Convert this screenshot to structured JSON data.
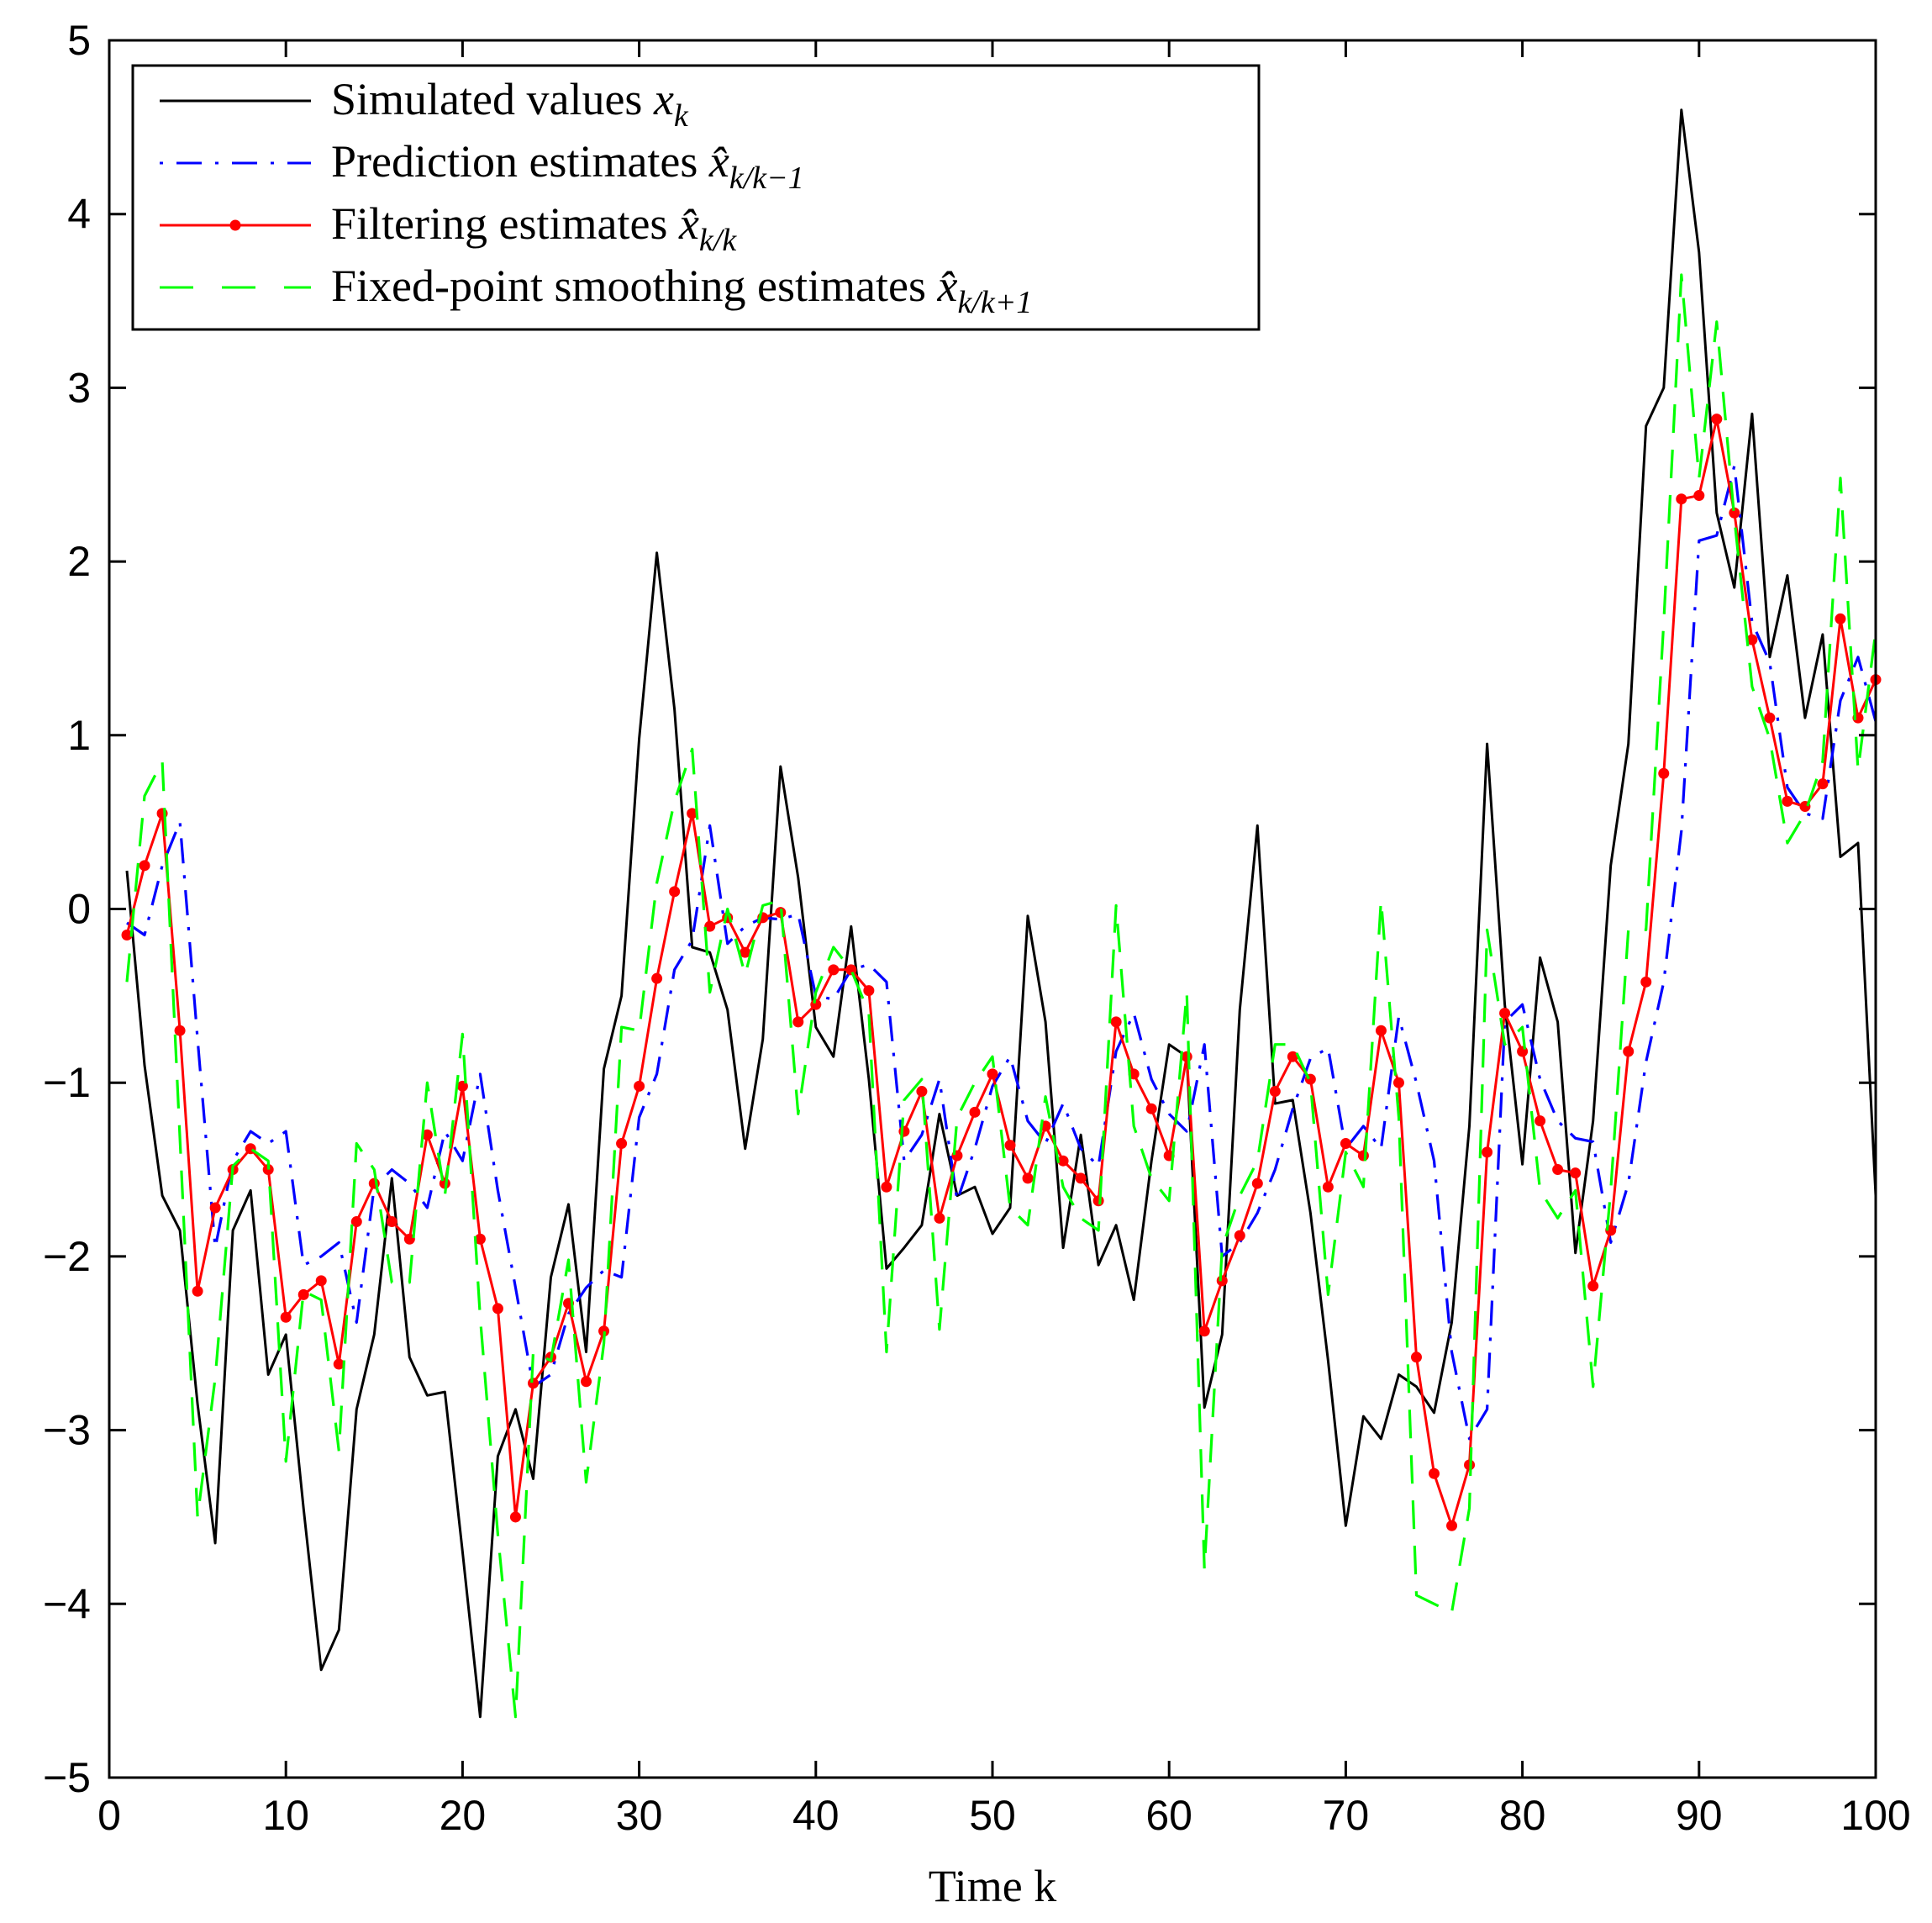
{
  "chart_data": {
    "type": "line",
    "title": "",
    "xlabel": "Time k",
    "ylabel": "",
    "xlim": [
      0,
      100
    ],
    "ylim": [
      -5,
      5
    ],
    "xticks": [
      0,
      10,
      20,
      30,
      40,
      50,
      60,
      70,
      80,
      90,
      100
    ],
    "yticks": [
      -5,
      -4,
      -3,
      -2,
      -1,
      0,
      1,
      2,
      3,
      4,
      5
    ],
    "xtick_labels": [
      "0",
      "10",
      "20",
      "30",
      "40",
      "50",
      "60",
      "70",
      "80",
      "90",
      "100"
    ],
    "ytick_labels": [
      "−5",
      "−4",
      "−3",
      "−2",
      "−1",
      "0",
      "1",
      "2",
      "3",
      "4",
      "5"
    ],
    "grid": false,
    "legend_position": "top-left",
    "x": [
      1,
      2,
      3,
      4,
      5,
      6,
      7,
      8,
      9,
      10,
      11,
      12,
      13,
      14,
      15,
      16,
      17,
      18,
      19,
      20,
      21,
      22,
      23,
      24,
      25,
      26,
      27,
      28,
      29,
      30,
      31,
      32,
      33,
      34,
      35,
      36,
      37,
      38,
      39,
      40,
      41,
      42,
      43,
      44,
      45,
      46,
      47,
      48,
      49,
      50,
      51,
      52,
      53,
      54,
      55,
      56,
      57,
      58,
      59,
      60,
      61,
      62,
      63,
      64,
      65,
      66,
      67,
      68,
      69,
      70,
      71,
      72,
      73,
      74,
      75,
      76,
      77,
      78,
      79,
      80,
      81,
      82,
      83,
      84,
      85,
      86,
      87,
      88,
      89,
      90,
      91,
      92,
      93,
      94,
      95,
      96,
      97,
      98,
      99,
      100
    ],
    "series": [
      {
        "name": "Simulated values x_k",
        "legend_label": "Simulated values",
        "legend_math": "x",
        "legend_sub": "k",
        "color": "#000000",
        "style": "solid",
        "marker": "none",
        "values": [
          0.22,
          -0.9,
          -1.65,
          -1.85,
          -2.85,
          -3.65,
          -1.85,
          -1.62,
          -2.68,
          -2.45,
          -3.45,
          -4.38,
          -4.15,
          -2.88,
          -2.45,
          -1.55,
          -2.58,
          -2.8,
          -2.78,
          -3.7,
          -4.65,
          -3.15,
          -2.88,
          -3.28,
          -2.12,
          -1.7,
          -2.55,
          -0.92,
          -0.5,
          0.98,
          2.05,
          1.15,
          -0.22,
          -0.25,
          -0.58,
          -1.38,
          -0.75,
          0.82,
          0.18,
          -0.68,
          -0.85,
          -0.1,
          -0.98,
          -2.07,
          -1.95,
          -1.82,
          -1.18,
          -1.65,
          -1.6,
          -1.87,
          -1.72,
          -0.04,
          -0.65,
          -1.95,
          -1.3,
          -2.05,
          -1.82,
          -2.25,
          -1.45,
          -0.78,
          -0.85,
          -2.87,
          -2.45,
          -0.58,
          0.48,
          -1.12,
          -1.1,
          -1.75,
          -2.6,
          -3.55,
          -2.92,
          -3.05,
          -2.68,
          -2.75,
          -2.9,
          -2.38,
          -1.25,
          0.95,
          -0.55,
          -1.47,
          -0.28,
          -0.65,
          -1.98,
          -1.22,
          0.25,
          0.95,
          2.78,
          3.0,
          4.6,
          3.78,
          2.28,
          1.85,
          2.85,
          1.45,
          1.92,
          1.1,
          1.58,
          0.3,
          0.38,
          -1.65
        ]
      },
      {
        "name": "Prediction estimates x̂_{k/k-1}",
        "legend_label": "Prediction estimates",
        "legend_math": "x̂",
        "legend_sub": "k/k−1",
        "color": "#0000ff",
        "style": "dashdot",
        "marker": "none",
        "values": [
          -0.08,
          -0.15,
          0.25,
          0.5,
          -0.75,
          -1.95,
          -1.45,
          -1.28,
          -1.35,
          -1.28,
          -2.05,
          -2.0,
          -1.92,
          -2.38,
          -1.6,
          -1.5,
          -1.58,
          -1.72,
          -1.28,
          -1.45,
          -0.95,
          -1.62,
          -2.18,
          -2.75,
          -2.68,
          -2.33,
          -2.18,
          -2.08,
          -2.12,
          -1.2,
          -0.95,
          -0.35,
          -0.18,
          0.48,
          -0.2,
          -0.1,
          -0.05,
          -0.06,
          -0.03,
          -0.5,
          -0.52,
          -0.35,
          -0.32,
          -0.42,
          -1.45,
          -1.3,
          -0.98,
          -1.68,
          -1.38,
          -1.02,
          -0.85,
          -1.22,
          -1.35,
          -1.12,
          -1.38,
          -1.48,
          -0.82,
          -0.6,
          -0.98,
          -1.18,
          -1.28,
          -0.78,
          -2.0,
          -1.92,
          -1.75,
          -1.5,
          -1.15,
          -0.86,
          -0.8,
          -1.38,
          -1.25,
          -1.38,
          -0.62,
          -1.0,
          -1.45,
          -2.55,
          -3.05,
          -2.88,
          -0.65,
          -0.55,
          -0.98,
          -1.22,
          -1.32,
          -1.34,
          -1.92,
          -1.58,
          -0.88,
          -0.42,
          0.45,
          2.12,
          2.15,
          2.55,
          1.65,
          1.42,
          0.7,
          0.55,
          0.52,
          1.2,
          1.45,
          1.08
        ]
      },
      {
        "name": "Filtering estimates x̂_{k/k}",
        "legend_label": "Filtering estimates",
        "legend_math": "x̂",
        "legend_sub": "k/k",
        "color": "#ff0000",
        "style": "solid",
        "marker": "dot",
        "values": [
          -0.15,
          0.25,
          0.55,
          -0.7,
          -2.2,
          -1.72,
          -1.5,
          -1.38,
          -1.5,
          -2.35,
          -2.22,
          -2.14,
          -2.62,
          -1.8,
          -1.58,
          -1.8,
          -1.9,
          -1.3,
          -1.58,
          -1.02,
          -1.9,
          -2.3,
          -3.5,
          -2.73,
          -2.58,
          -2.27,
          -2.72,
          -2.43,
          -1.35,
          -1.02,
          -0.4,
          0.1,
          0.55,
          -0.1,
          -0.05,
          -0.25,
          -0.05,
          -0.02,
          -0.65,
          -0.55,
          -0.35,
          -0.35,
          -0.47,
          -1.6,
          -1.28,
          -1.05,
          -1.78,
          -1.42,
          -1.17,
          -0.95,
          -1.36,
          -1.55,
          -1.25,
          -1.45,
          -1.55,
          -1.68,
          -0.65,
          -0.95,
          -1.15,
          -1.42,
          -0.85,
          -2.43,
          -2.14,
          -1.88,
          -1.58,
          -1.05,
          -0.85,
          -0.98,
          -1.6,
          -1.35,
          -1.42,
          -0.7,
          -1.0,
          -2.58,
          -3.25,
          -3.55,
          -3.2,
          -1.4,
          -0.6,
          -0.82,
          -1.22,
          -1.5,
          -1.52,
          -2.17,
          -1.85,
          -0.82,
          -0.42,
          0.78,
          2.36,
          2.38,
          2.82,
          2.28,
          1.55,
          1.1,
          0.62,
          0.59,
          0.72,
          1.67,
          1.1,
          1.32
        ]
      },
      {
        "name": "Fixed-point smoothing estimates x̂_{k/k+1}",
        "legend_label": "Fixed-point smoothing estimates",
        "legend_math": "x̂",
        "legend_sub": "k/k+1",
        "color": "#00ff00",
        "style": "dashed",
        "marker": "none",
        "values": [
          -0.42,
          0.65,
          0.85,
          -1.32,
          -3.5,
          -2.7,
          -1.48,
          -1.38,
          -1.45,
          -3.18,
          -2.2,
          -2.25,
          -3.12,
          -1.35,
          -1.5,
          -2.15,
          -2.15,
          -1.0,
          -1.65,
          -0.72,
          -2.35,
          -3.6,
          -4.65,
          -2.55,
          -2.6,
          -2.02,
          -3.3,
          -2.5,
          -0.68,
          -0.7,
          0.15,
          0.62,
          0.92,
          -0.48,
          0.0,
          -0.38,
          0.02,
          0.05,
          -1.18,
          -0.48,
          -0.22,
          -0.35,
          -0.6,
          -2.55,
          -1.1,
          -0.98,
          -2.42,
          -1.2,
          -1.0,
          -0.85,
          -1.72,
          -1.82,
          -1.08,
          -1.6,
          -1.78,
          -1.85,
          0.02,
          -1.25,
          -1.55,
          -1.68,
          -0.48,
          -3.8,
          -1.95,
          -1.65,
          -1.45,
          -0.78,
          -0.78,
          -1.0,
          -2.22,
          -1.4,
          -1.6,
          0.05,
          -1.2,
          -3.95,
          -4.0,
          -4.05,
          -3.45,
          -0.12,
          -0.78,
          -0.68,
          -1.62,
          -1.78,
          -1.62,
          -2.75,
          -1.62,
          -0.12,
          -0.12,
          1.65,
          3.65,
          2.48,
          3.38,
          2.25,
          1.28,
          0.98,
          0.38,
          0.55,
          0.85,
          2.48,
          0.8,
          1.6
        ]
      }
    ]
  }
}
